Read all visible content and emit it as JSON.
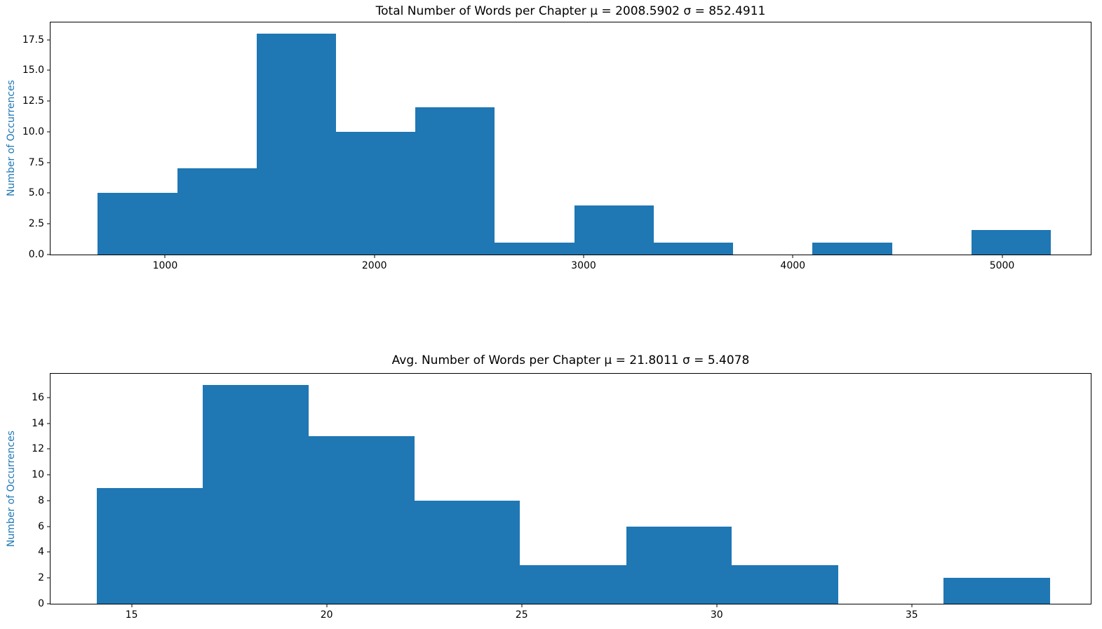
{
  "figure": {
    "background": "#ffffff",
    "bar_color": "#1f77b4",
    "ylabel_color": "#1f77b4",
    "axis_color": "#000000",
    "text_color": "#000000"
  },
  "chart_data": [
    {
      "type": "bar",
      "subtype": "histogram",
      "title": "Total Number of Words per Chapter μ = 2008.5902 σ = 852.4911",
      "mu": 2008.5902,
      "sigma": 852.4911,
      "xlabel": "",
      "ylabel": "Number of Occurrences",
      "bin_edges": [
        678,
        1057.6,
        1437.2,
        1816.7,
        2196.3,
        2575.9,
        2955.5,
        3335.1,
        3714.6,
        4094.2,
        4473.8,
        4853.4,
        5233
      ],
      "counts": [
        5,
        7,
        18,
        10,
        12,
        1,
        4,
        1,
        0,
        1,
        0,
        2
      ],
      "xlim": [
        452,
        5424
      ],
      "ylim": [
        0,
        18.9
      ],
      "xticks": [
        1000,
        2000,
        3000,
        4000,
        5000
      ],
      "xtick_labels": [
        "1000",
        "2000",
        "3000",
        "4000",
        "5000"
      ],
      "yticks": [
        0,
        2.5,
        5,
        7.5,
        10,
        12.5,
        15,
        17.5
      ],
      "ytick_labels": [
        "0.0",
        "2.5",
        "5.0",
        "7.5",
        "10.0",
        "12.5",
        "15.0",
        "17.5"
      ],
      "grid": false,
      "legend": false
    },
    {
      "type": "bar",
      "subtype": "histogram",
      "title": "Avg. Number of Words per Chapter μ = 21.8011 σ = 5.4078",
      "mu": 21.8011,
      "sigma": 5.4078,
      "xlabel": "",
      "ylabel": "Number of Occurrences",
      "bin_edges": [
        14.1,
        16.82,
        19.53,
        22.25,
        24.96,
        27.68,
        30.39,
        33.11,
        35.82,
        38.54
      ],
      "counts": [
        9,
        17,
        13,
        8,
        3,
        6,
        3,
        0,
        2
      ],
      "xlim": [
        12.92,
        39.59
      ],
      "ylim": [
        0,
        17.85
      ],
      "xticks": [
        15,
        20,
        25,
        30,
        35
      ],
      "xtick_labels": [
        "15",
        "20",
        "25",
        "30",
        "35"
      ],
      "yticks": [
        0,
        2,
        4,
        6,
        8,
        10,
        12,
        14,
        16
      ],
      "ytick_labels": [
        "0",
        "2",
        "4",
        "6",
        "8",
        "10",
        "12",
        "14",
        "16"
      ],
      "grid": false,
      "legend": false
    }
  ]
}
